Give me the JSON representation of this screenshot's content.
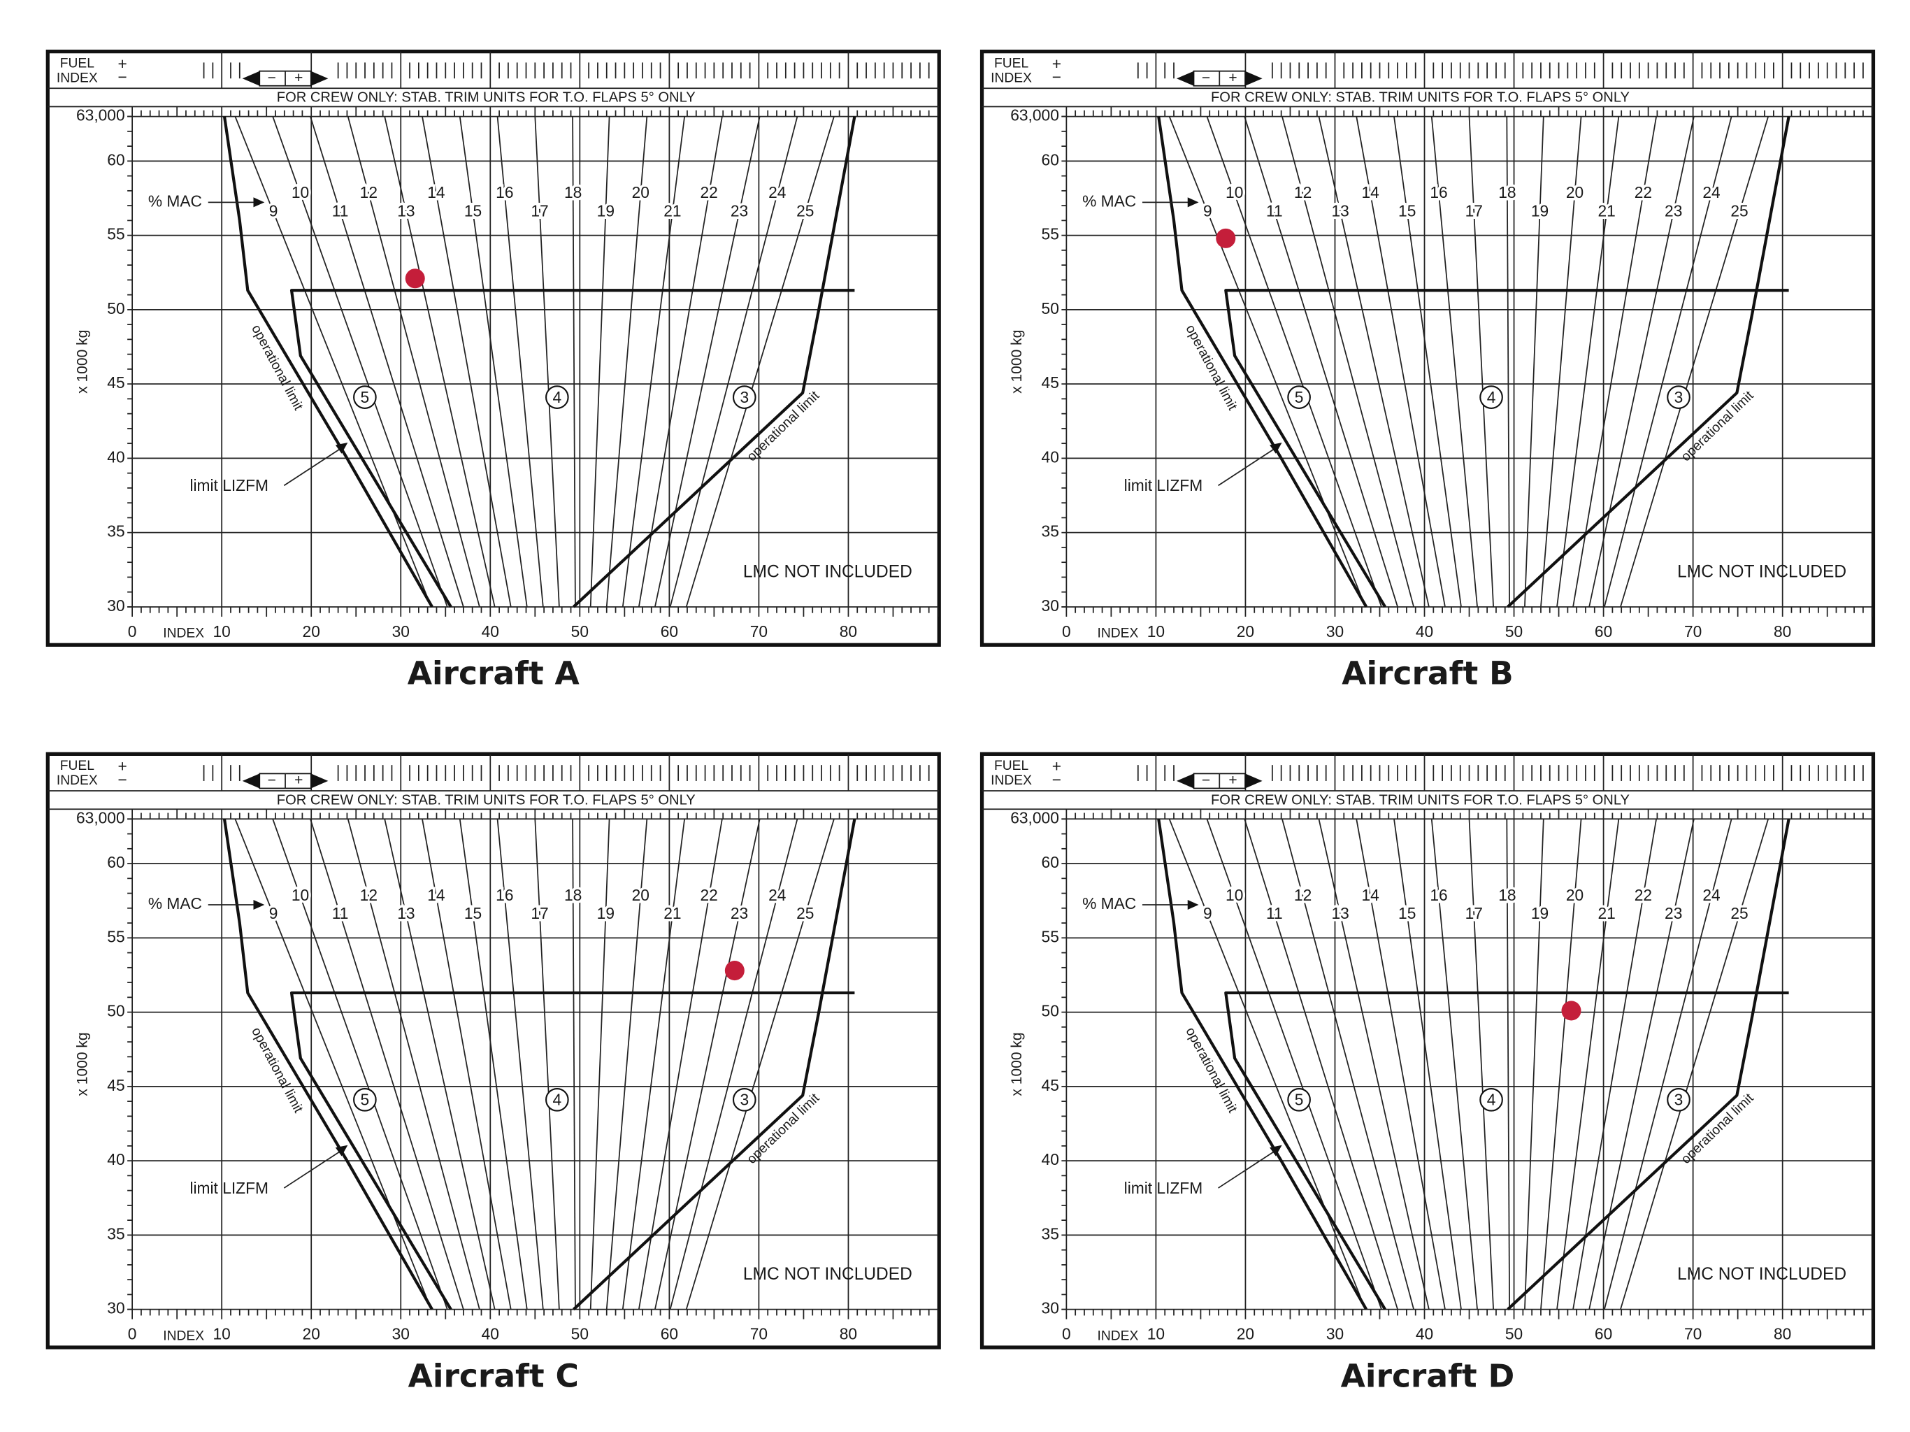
{
  "diagram": {
    "fuel_label": "FUEL",
    "fuel_index_label": "INDEX",
    "plus": "+",
    "minus": "−",
    "crew_note": "FOR CREW ONLY: STAB. TRIM UNITS FOR T.O. FLAPS 5° ONLY",
    "y_label": "x 1000 kg",
    "x_label": "INDEX",
    "mac_label": "% MAC",
    "operational_limit": "operational limit",
    "lizfm_label": "limit LIZFM",
    "lmc_note": "LMC NOT INCLUDED",
    "trim_units": [
      5,
      4,
      3
    ],
    "mac_lines": {
      "mac": [
        9,
        10,
        11,
        12,
        13,
        14,
        15,
        16,
        17,
        18,
        19,
        20,
        21,
        22,
        23,
        24,
        25
      ],
      "top_index": [
        11.5,
        15.7,
        19.9,
        24.1,
        28.2,
        32.4,
        36.6,
        40.8,
        45.0,
        49.2,
        53.3,
        57.5,
        61.7,
        65.9,
        70.1,
        74.3,
        78.4
      ],
      "bottom_index": [
        33.4,
        35.2,
        37.0,
        38.8,
        40.5,
        42.3,
        44.1,
        45.9,
        47.7,
        49.5,
        51.2,
        53.0,
        54.8,
        56.6,
        58.4,
        60.1,
        61.9
      ]
    },
    "limits": [
      {
        "index": [
          10.3,
          12.0,
          12.9,
          24.0,
          33.5
        ],
        "weight": [
          63,
          56,
          51.3,
          40,
          30
        ]
      },
      {
        "index": [
          80.7,
          17.8,
          18.8,
          35.6
        ],
        "weight": [
          51.3,
          51.3,
          46.9,
          30
        ]
      },
      {
        "index": [
          80.7,
          76.7,
          74.9,
          49.3
        ],
        "weight": [
          63,
          50,
          44.4,
          30
        ]
      }
    ]
  },
  "chart_data": [
    {
      "type": "scatter",
      "title": "Aircraft A",
      "x": [
        31.6
      ],
      "values": [
        52.1
      ],
      "color": "#c41e3a",
      "xlim": [
        0,
        90
      ],
      "ylim": [
        30,
        63
      ],
      "xticks": [
        0,
        10,
        20,
        30,
        40,
        50,
        60,
        70,
        80
      ],
      "yticks": [
        30,
        35,
        40,
        45,
        50,
        55,
        60,
        {
          "value": 63,
          "label": "63,000"
        }
      ]
    },
    {
      "type": "scatter",
      "title": "Aircraft B",
      "x": [
        17.8
      ],
      "values": [
        54.8
      ],
      "color": "#c41e3a",
      "xlim": [
        0,
        90
      ],
      "ylim": [
        30,
        63
      ],
      "xticks": [
        0,
        10,
        20,
        30,
        40,
        50,
        60,
        70,
        80
      ],
      "yticks": [
        30,
        35,
        40,
        45,
        50,
        55,
        60,
        {
          "value": 63,
          "label": "63,000"
        }
      ]
    },
    {
      "type": "scatter",
      "title": "Aircraft C",
      "x": [
        67.3
      ],
      "values": [
        52.8
      ],
      "color": "#c41e3a",
      "xlim": [
        0,
        90
      ],
      "ylim": [
        30,
        63
      ],
      "xticks": [
        0,
        10,
        20,
        30,
        40,
        50,
        60,
        70,
        80
      ],
      "yticks": [
        30,
        35,
        40,
        45,
        50,
        55,
        60,
        {
          "value": 63,
          "label": "63,000"
        }
      ]
    },
    {
      "type": "scatter",
      "title": "Aircraft D",
      "x": [
        56.4
      ],
      "values": [
        50.1
      ],
      "color": "#c41e3a",
      "xlim": [
        0,
        90
      ],
      "ylim": [
        30,
        63
      ],
      "xticks": [
        0,
        10,
        20,
        30,
        40,
        50,
        60,
        70,
        80
      ],
      "yticks": [
        30,
        35,
        40,
        45,
        50,
        55,
        60,
        {
          "value": 63,
          "label": "63,000"
        }
      ]
    }
  ]
}
